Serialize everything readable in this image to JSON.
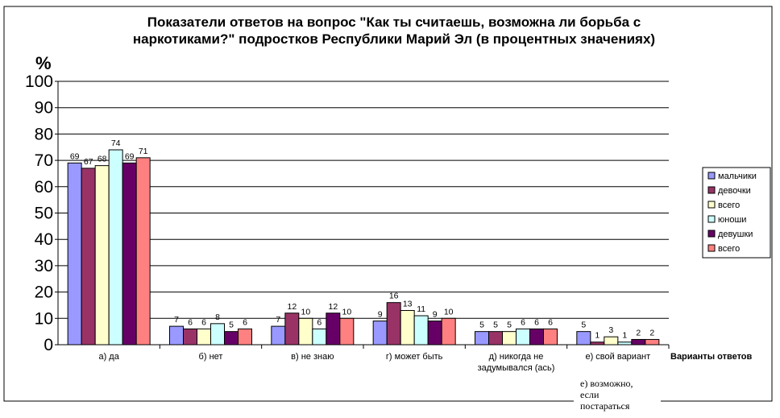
{
  "chart_data": {
    "type": "bar",
    "title_lines": [
      "Показатели ответов на вопрос \"Как ты считаешь, возможна ли борьба с",
      "наркотиками?\" подростков Республики Марий Эл (в процентных значениях)"
    ],
    "ylabel": "%",
    "xlabel": "Варианты ответов",
    "ylim": [
      0,
      100
    ],
    "yticks": [
      0,
      10,
      20,
      30,
      40,
      50,
      60,
      70,
      80,
      90,
      100
    ],
    "grid": true,
    "legend_position": "right",
    "categories": [
      [
        "а) да"
      ],
      [
        "б) нет"
      ],
      [
        "в) не знаю"
      ],
      [
        "г) может быть"
      ],
      [
        "д) никогда не",
        "задумывался (ась)"
      ],
      [
        "е) свой вариант"
      ]
    ],
    "series": [
      {
        "name": "мальчики",
        "color": "#9999ff",
        "values": [
          69,
          7,
          7,
          9,
          5,
          5
        ]
      },
      {
        "name": "девочки",
        "color": "#993366",
        "values": [
          67,
          6,
          12,
          16,
          5,
          1
        ]
      },
      {
        "name": "всего",
        "color": "#ffffcc",
        "values": [
          68,
          6,
          10,
          13,
          5,
          3
        ]
      },
      {
        "name": "юноши",
        "color": "#ccffff",
        "values": [
          74,
          8,
          6,
          11,
          6,
          1
        ]
      },
      {
        "name": "девушки",
        "color": "#660066",
        "values": [
          69,
          5,
          12,
          9,
          6,
          2
        ]
      },
      {
        "name": "всего",
        "color": "#ff8080",
        "values": [
          71,
          6,
          10,
          10,
          6,
          2
        ]
      }
    ],
    "annotation_lines": [
      "е) возможно,",
      "если",
      "постараться"
    ]
  }
}
